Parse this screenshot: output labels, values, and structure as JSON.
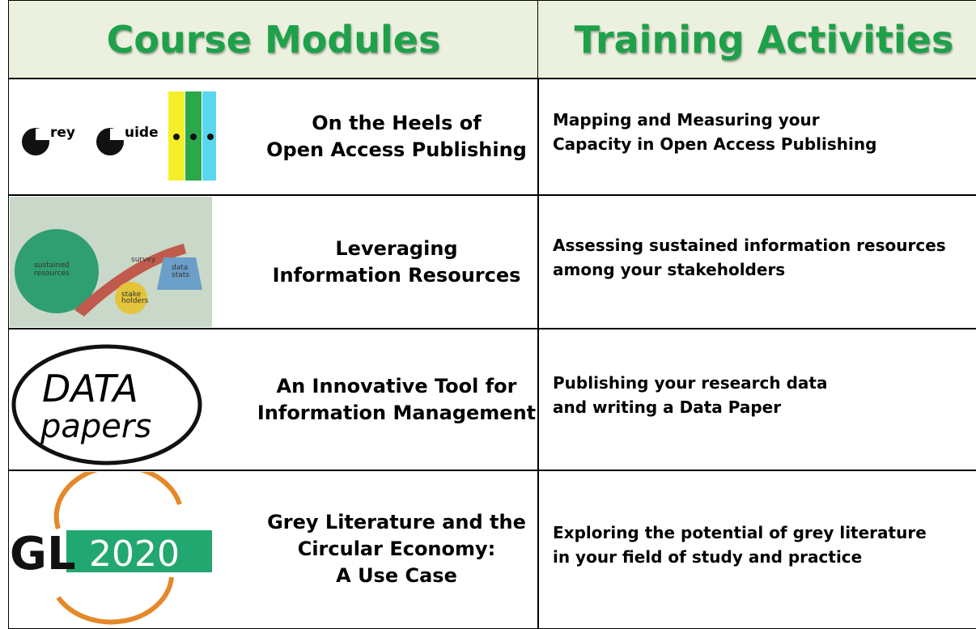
{
  "header": {
    "left": "Course Modules",
    "right": "Training Activities"
  },
  "rows": [
    {
      "image_text": [
        "rey",
        "uide"
      ],
      "module": [
        "On the Heels of",
        "Open Access Publishing"
      ],
      "activity": [
        "Mapping and Measuring your",
        "Capacity in Open Access Publishing"
      ]
    },
    {
      "image_text": [
        "sustained",
        "resources",
        "survey",
        "data",
        "stats",
        "stake",
        "holders"
      ],
      "module": [
        "Leveraging",
        "Information Resources"
      ],
      "activity": [
        "Assessing sustained information resources",
        "among your stakeholders"
      ]
    },
    {
      "image_text": [
        "DATA",
        "papers"
      ],
      "module": [
        "An Innovative Tool for",
        "Information Management"
      ],
      "activity": [
        "Publishing your research data",
        "and writing a Data Paper"
      ]
    },
    {
      "image_text": [
        "GL",
        "2020"
      ],
      "module": [
        "Grey Literature and the",
        "Circular Economy:",
        "A Use Case"
      ],
      "activity": [
        "Exploring the potential of grey literature",
        "in your field of study and practice"
      ]
    }
  ]
}
